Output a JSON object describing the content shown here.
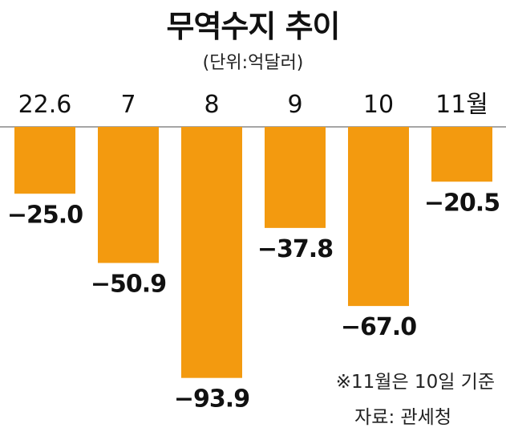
{
  "chart_data": {
    "type": "bar",
    "title": "무역수지 추이",
    "unit": "(단위:억달러)",
    "categories": [
      "22.6",
      "7",
      "8",
      "9",
      "10",
      "11월"
    ],
    "values": [
      -25.0,
      -50.9,
      -93.9,
      -37.8,
      -67.0,
      -20.5
    ],
    "value_labels": [
      "−25.0",
      "−50.9",
      "−93.9",
      "−37.8",
      "−67.0",
      "−20.5"
    ],
    "ylim": [
      -100,
      0
    ],
    "grid": false,
    "legend": "none",
    "bar_color": "#F39A0F",
    "baseline_color": "#888888",
    "note": "※11월은 10일 기준",
    "source": "자료: 관세청"
  }
}
